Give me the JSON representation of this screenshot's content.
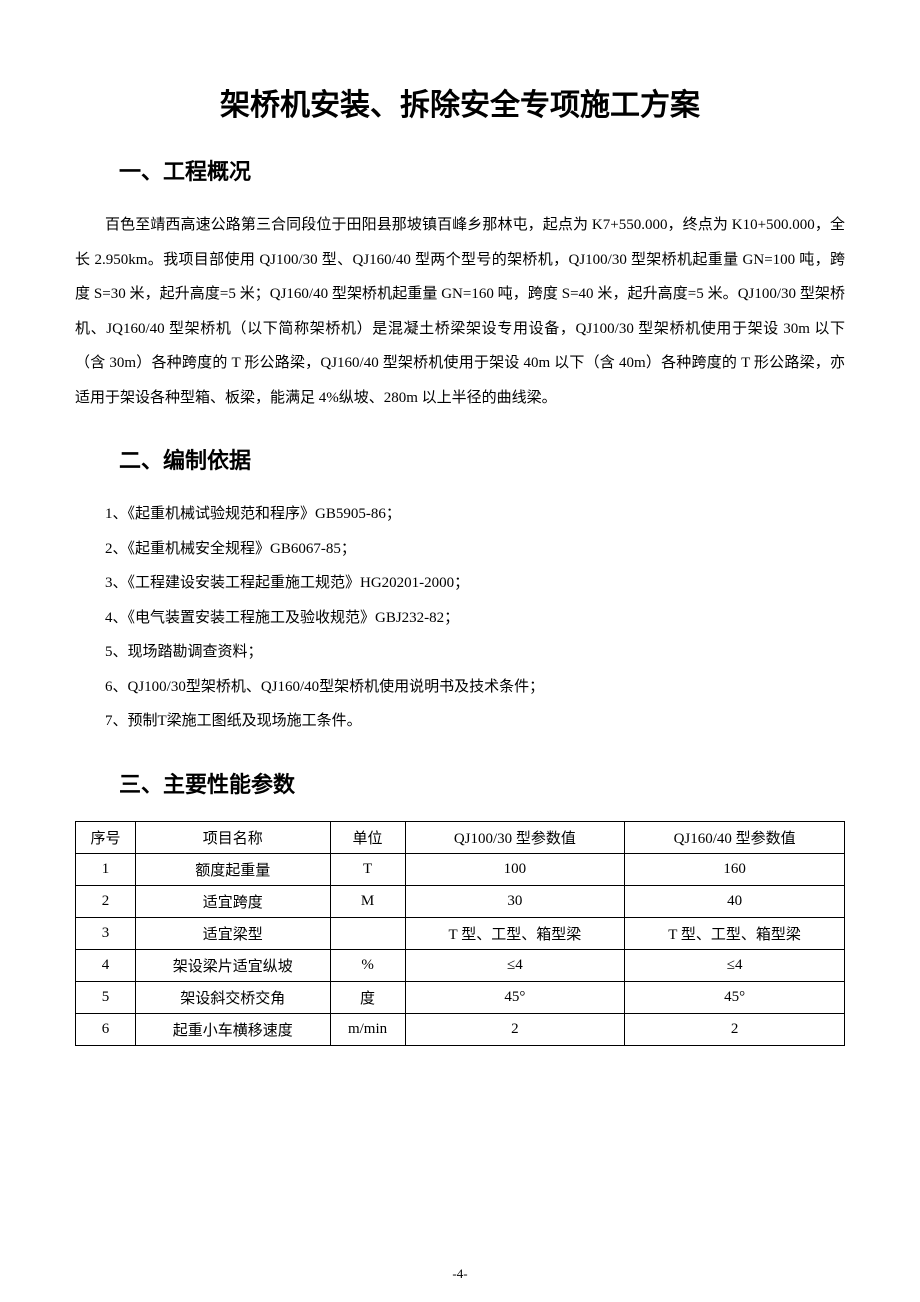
{
  "title": "架桥机安装、拆除安全专项施工方案",
  "sections": {
    "s1": {
      "heading": "一、工程概况",
      "paragraph": "百色至靖西高速公路第三合同段位于田阳县那坡镇百峰乡那林屯，起点为 K7+550.000，终点为 K10+500.000，全长 2.950km。我项目部使用 QJ100/30 型、QJ160/40 型两个型号的架桥机，QJ100/30 型架桥机起重量 GN=100 吨，跨度 S=30 米，起升高度=5 米；QJ160/40 型架桥机起重量 GN=160 吨，跨度 S=40 米，起升高度=5 米。QJ100/30 型架桥机、JQ160/40 型架桥机（以下简称架桥机）是混凝土桥梁架设专用设备，QJ100/30 型架桥机使用于架设 30m 以下（含 30m）各种跨度的 T 形公路梁，QJ160/40 型架桥机使用于架设 40m 以下（含 40m）各种跨度的 T 形公路梁，亦适用于架设各种型箱、板梁，能满足 4%纵坡、280m 以上半径的曲线梁。"
    },
    "s2": {
      "heading": "二、编制依据",
      "items": [
        "1、《起重机械试验规范和程序》GB5905-86；",
        "2、《起重机械安全规程》GB6067-85；",
        "3、《工程建设安装工程起重施工规范》HG20201-2000；",
        "4、《电气装置安装工程施工及验收规范》GBJ232-82；",
        "5、现场踏勘调查资料；",
        "6、QJ100/30型架桥机、QJ160/40型架桥机使用说明书及技术条件；",
        "7、预制T梁施工图纸及现场施工条件。"
      ]
    },
    "s3": {
      "heading": "三、主要性能参数"
    }
  },
  "table": {
    "headers": {
      "num": "序号",
      "name": "项目名称",
      "unit": "单位",
      "val1": "QJ100/30 型参数值",
      "val2": "QJ160/40 型参数值"
    },
    "rows": [
      {
        "num": "1",
        "name": "额度起重量",
        "unit": "T",
        "val1": "100",
        "val2": "160"
      },
      {
        "num": "2",
        "name": "适宜跨度",
        "unit": "M",
        "val1": "30",
        "val2": "40"
      },
      {
        "num": "3",
        "name": "适宜梁型",
        "unit": "",
        "val1": "T 型、工型、箱型梁",
        "val2": "T 型、工型、箱型梁"
      },
      {
        "num": "4",
        "name": "架设梁片适宜纵坡",
        "unit": "%",
        "val1": "≤4",
        "val2": "≤4"
      },
      {
        "num": "5",
        "name": "架设斜交桥交角",
        "unit": "度",
        "val1": "45°",
        "val2": "45°"
      },
      {
        "num": "6",
        "name": "起重小车横移速度",
        "unit": "m/min",
        "val1": "2",
        "val2": "2"
      }
    ]
  },
  "page_number": "-4-",
  "styling": {
    "background_color": "#ffffff",
    "text_color": "#000000",
    "title_fontsize": 30,
    "section_heading_fontsize": 22,
    "body_fontsize": 15,
    "line_height": 2.3,
    "table_border_color": "#000000",
    "font_family_heading": "SimHei",
    "font_family_body": "SimSun"
  }
}
